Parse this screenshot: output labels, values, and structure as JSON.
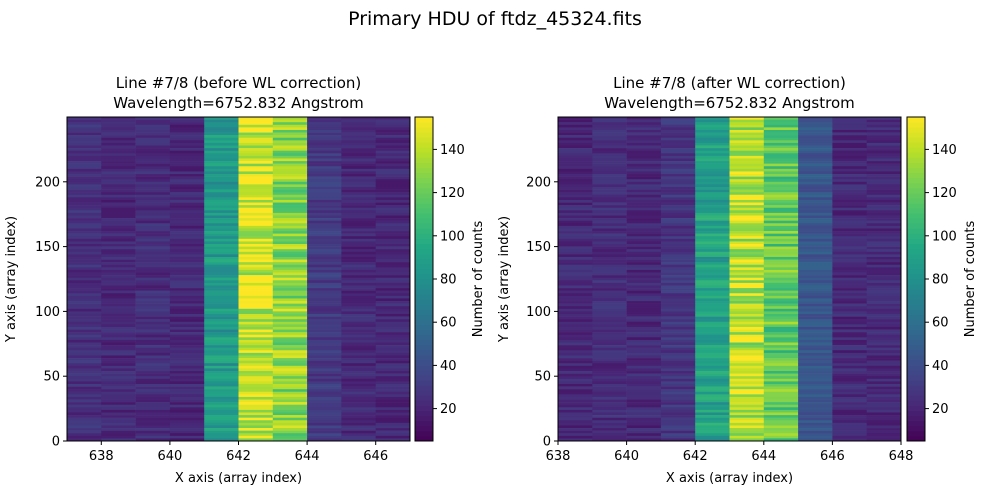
{
  "figure_title": "Primary HDU of ftdz_45324.fits",
  "colormap": "viridis",
  "chart_data": [
    {
      "type": "heatmap",
      "title_line1": "Line #7/8 (before WL correction)",
      "title_line2": "Wavelength=6752.832 Angstrom",
      "xlabel": "X axis (array index)",
      "ylabel": "Y axis (array index)",
      "colorbar_label": "Number of counts",
      "xlim": [
        637,
        647
      ],
      "ylim": [
        0,
        250
      ],
      "xticks": [
        638,
        640,
        642,
        644,
        646
      ],
      "yticks": [
        0,
        50,
        100,
        150,
        200
      ],
      "clim": [
        5,
        155
      ],
      "cticks": [
        20,
        40,
        60,
        80,
        100,
        120,
        140
      ],
      "columns": [
        637,
        638,
        639,
        640,
        641,
        642,
        643,
        644,
        645,
        646
      ],
      "column_means": [
        25,
        22,
        24,
        22,
        85,
        145,
        130,
        30,
        22,
        22
      ]
    },
    {
      "type": "heatmap",
      "title_line1": "Line #7/8 (after WL correction)",
      "title_line2": "Wavelength=6752.832 Angstrom",
      "xlabel": "X axis (array index)",
      "ylabel": "Y axis (array index)",
      "colorbar_label": "Number of counts",
      "xlim": [
        638,
        648
      ],
      "ylim": [
        0,
        250
      ],
      "xticks": [
        638,
        640,
        642,
        644,
        646,
        648
      ],
      "yticks": [
        0,
        50,
        100,
        150,
        200
      ],
      "clim": [
        5,
        155
      ],
      "cticks": [
        20,
        40,
        60,
        80,
        100,
        120,
        140
      ],
      "columns": [
        638,
        639,
        640,
        641,
        642,
        643,
        644,
        645,
        646,
        647
      ],
      "column_means": [
        22,
        24,
        22,
        28,
        90,
        140,
        118,
        45,
        22,
        22
      ]
    }
  ]
}
